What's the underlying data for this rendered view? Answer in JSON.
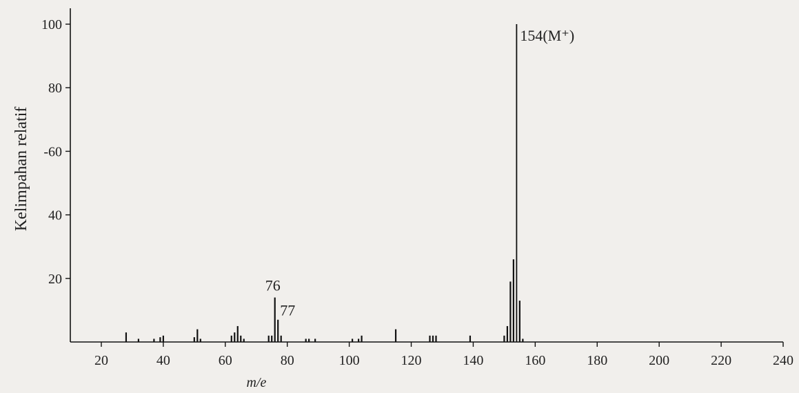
{
  "chart_data": {
    "type": "bar",
    "title": "",
    "xlabel": "m/e",
    "ylabel": "Kelimpahan relatif",
    "xlim": [
      10,
      240
    ],
    "ylim": [
      0,
      105
    ],
    "xticks": [
      20,
      40,
      60,
      80,
      100,
      120,
      140,
      160,
      180,
      200,
      220,
      240
    ],
    "yticks": [
      20,
      40,
      "-60",
      80,
      100
    ],
    "grid": false,
    "legend": "none",
    "series": [
      {
        "x": [
          28,
          32,
          37,
          39,
          40,
          50,
          51,
          52,
          62,
          63,
          64,
          65,
          66,
          74,
          75,
          76,
          77,
          78,
          86,
          87,
          89,
          101,
          103,
          104,
          115,
          126,
          127,
          128,
          139,
          150,
          151,
          152,
          153,
          154,
          155,
          156
        ],
        "values": [
          3,
          1,
          1,
          1.5,
          2,
          1.5,
          4,
          1,
          2,
          3,
          5,
          2,
          1,
          2,
          2,
          14,
          7,
          2,
          1,
          1,
          1,
          1,
          1,
          2,
          4,
          2,
          2,
          2,
          2,
          2,
          5,
          19,
          26,
          100,
          13,
          1
        ]
      }
    ],
    "annotations": [
      {
        "x": 154,
        "text": "154(M⁺)"
      },
      {
        "x": 76,
        "text": "76"
      },
      {
        "x": 77,
        "text": "77"
      }
    ]
  }
}
